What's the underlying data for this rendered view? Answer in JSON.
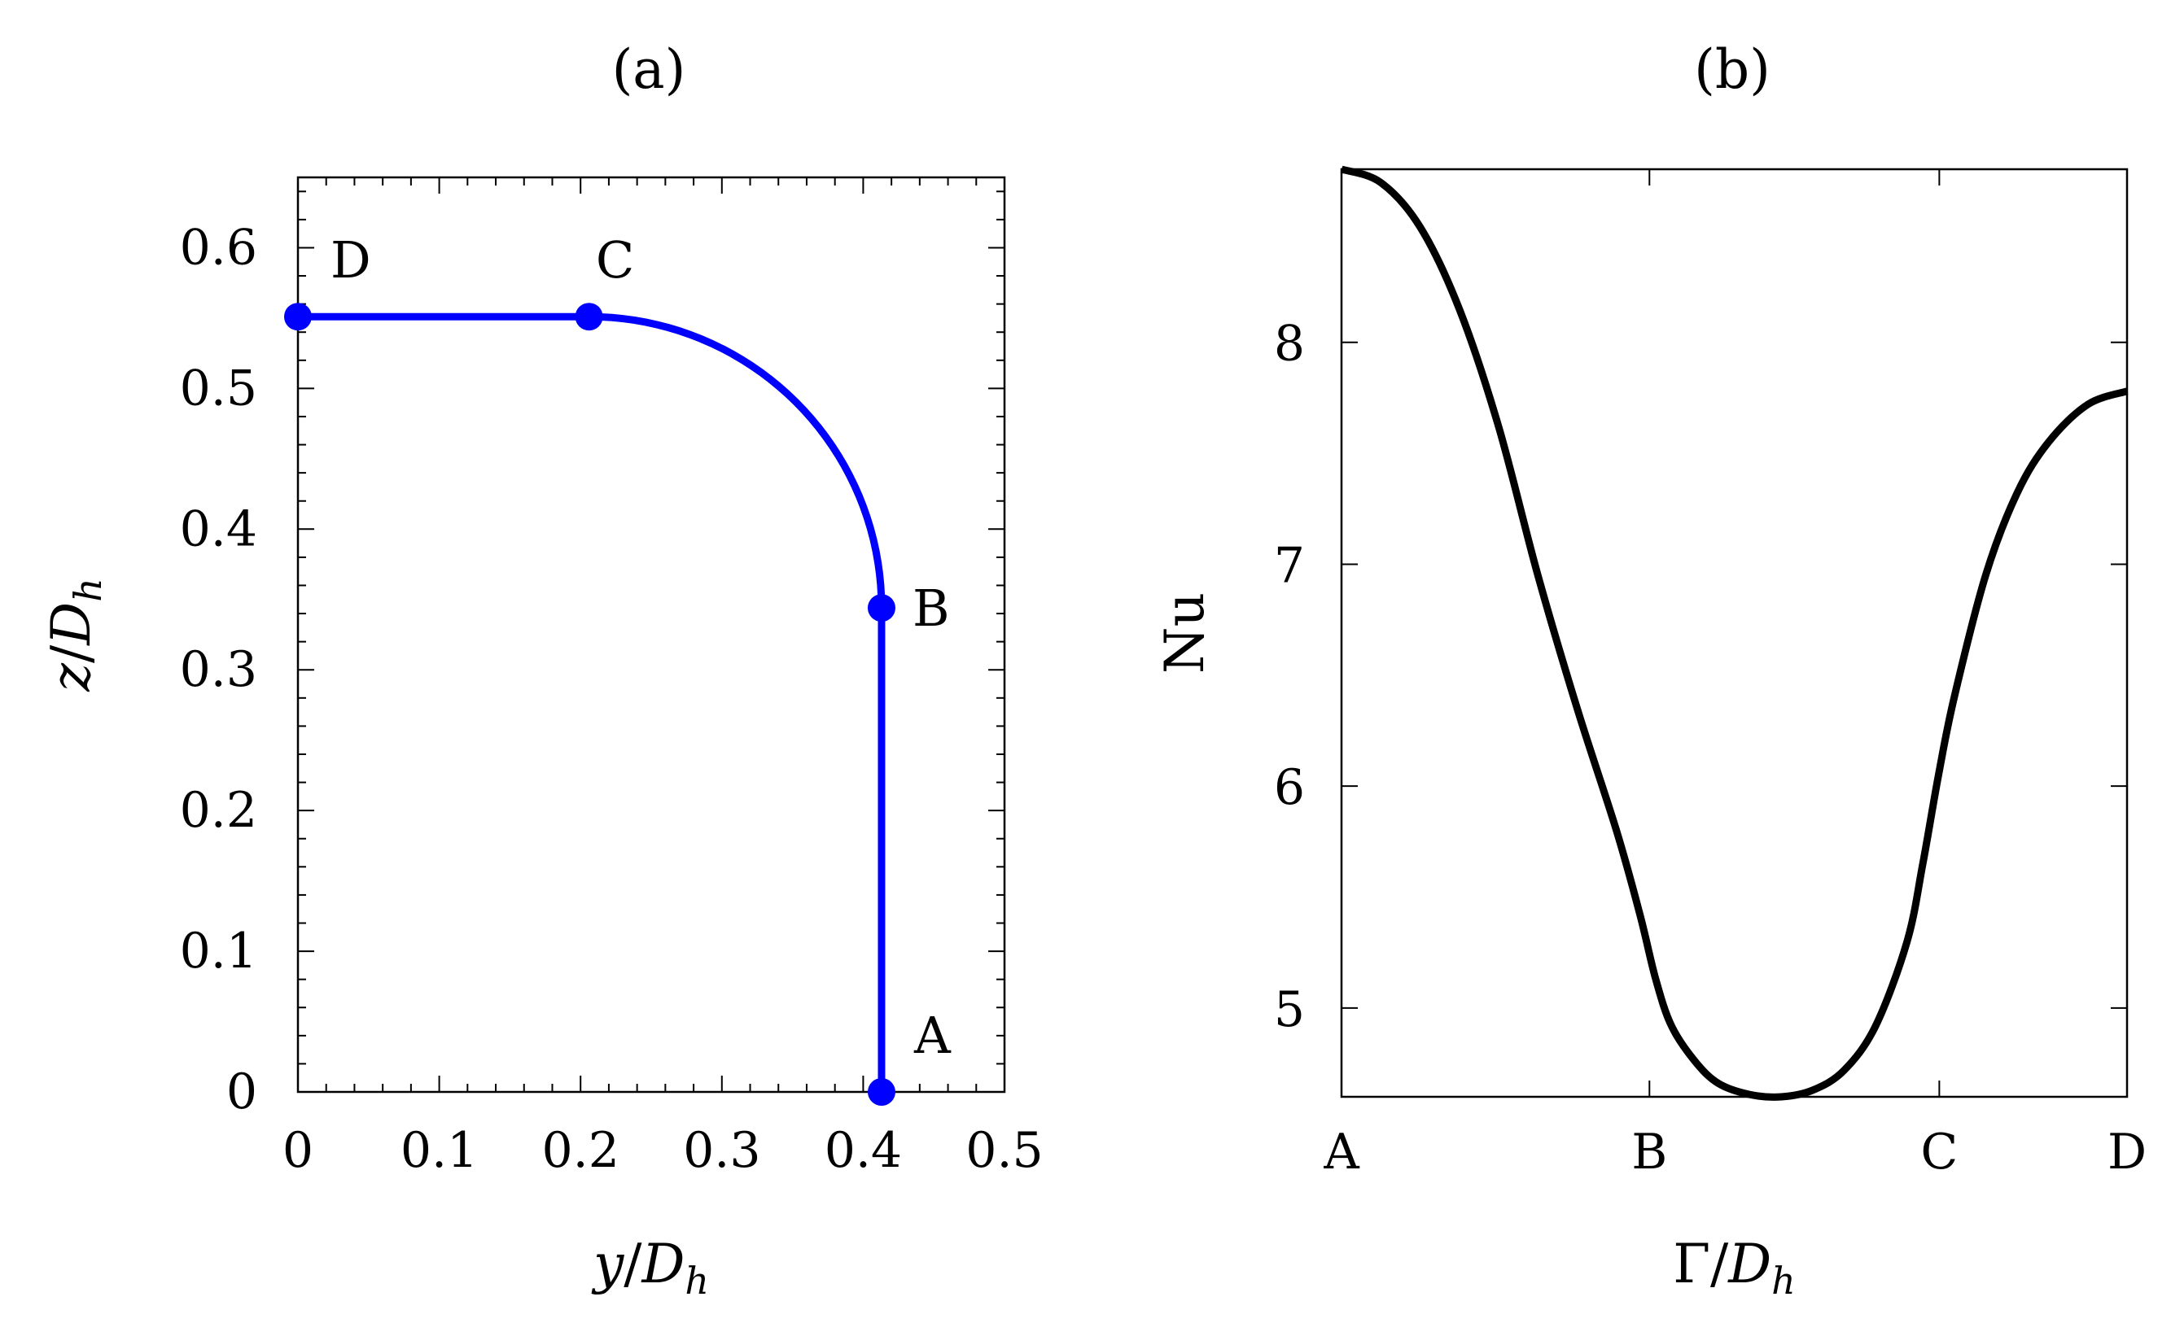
{
  "chart_data": [
    {
      "id": "a",
      "type": "line",
      "title": "(a)",
      "xlabel": "y/D_h",
      "ylabel": "z/D_h",
      "xlim": [
        0,
        0.5
      ],
      "ylim": [
        0,
        0.65
      ],
      "xticks": [
        0,
        0.1,
        0.2,
        0.3,
        0.4,
        0.5
      ],
      "yticks": [
        0,
        0.1,
        0.2,
        0.3,
        0.4,
        0.5,
        0.6
      ],
      "xtick_labels": [
        "0",
        "0.1",
        "0.2",
        "0.3",
        "0.4",
        "0.5"
      ],
      "ytick_labels": [
        "0",
        "0.1",
        "0.2",
        "0.3",
        "0.4",
        "0.5",
        "0.6"
      ],
      "line_color": "#0000ff",
      "path": [
        {
          "y": 0.413,
          "z": 0.0
        },
        {
          "y": 0.413,
          "z": 0.344
        },
        {
          "arc": true,
          "center_y": 0.206,
          "center_z": 0.344,
          "radius": 0.207
        },
        {
          "y": 0.206,
          "z": 0.551
        },
        {
          "y": 0.0,
          "z": 0.551
        }
      ],
      "points": [
        {
          "name": "A",
          "y": 0.413,
          "z": 0.0,
          "label_pos": "upper-right"
        },
        {
          "name": "B",
          "y": 0.413,
          "z": 0.344,
          "label_pos": "right"
        },
        {
          "name": "C",
          "y": 0.206,
          "z": 0.551,
          "label_pos": "above"
        },
        {
          "name": "D",
          "y": 0.0,
          "z": 0.551,
          "label_pos": "upper-right"
        }
      ]
    },
    {
      "id": "b",
      "type": "line",
      "title": "(b)",
      "xlabel": "Γ/D_h",
      "ylabel": "Nu",
      "ylim": [
        4.6,
        8.78
      ],
      "yticks": [
        5,
        6,
        7,
        8
      ],
      "ytick_labels": [
        "5",
        "6",
        "7",
        "8"
      ],
      "xtick_labels": [
        "A",
        "B",
        "C",
        "D"
      ],
      "xtick_positions": [
        0,
        0.392,
        0.761,
        1.0
      ],
      "line_color": "#000000",
      "series": [
        {
          "name": "Nu",
          "x": [
            0,
            0.05,
            0.1,
            0.15,
            0.2,
            0.25,
            0.3,
            0.35,
            0.38,
            0.4,
            0.42,
            0.45,
            0.48,
            0.52,
            0.56,
            0.6,
            0.64,
            0.68,
            0.72,
            0.74,
            0.76,
            0.78,
            0.82,
            0.86,
            0.9,
            0.95,
            1.0
          ],
          "y": [
            8.78,
            8.72,
            8.52,
            8.15,
            7.62,
            6.95,
            6.35,
            5.8,
            5.42,
            5.13,
            4.92,
            4.76,
            4.66,
            4.61,
            4.6,
            4.63,
            4.72,
            4.92,
            5.3,
            5.65,
            6.05,
            6.4,
            6.95,
            7.32,
            7.55,
            7.72,
            7.78
          ]
        }
      ]
    }
  ]
}
